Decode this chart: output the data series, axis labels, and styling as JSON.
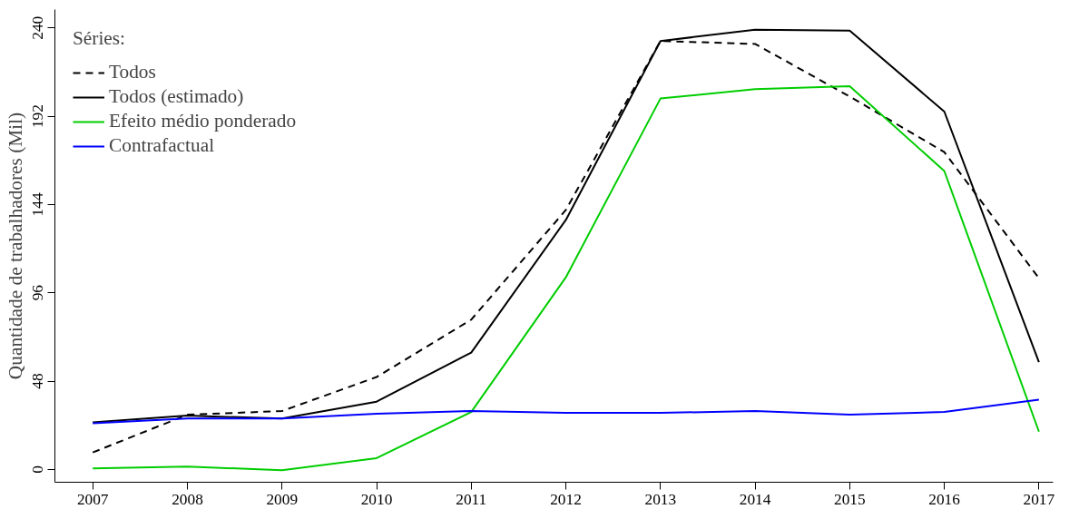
{
  "chart_data": {
    "type": "line",
    "ylabel": "Quantidade de trabalhadores (Mil)",
    "legend_title": "Séries:",
    "legend": "top left",
    "grid": false,
    "x": [
      2007,
      2008,
      2009,
      2010,
      2011,
      2012,
      2013,
      2014,
      2015,
      2016,
      2017
    ],
    "xlim": [
      2006.6,
      2017.15
    ],
    "xticks": [
      2007,
      2008,
      2009,
      2010,
      2011,
      2012,
      2013,
      2014,
      2015,
      2016,
      2017
    ],
    "ylim": [
      -7,
      250
    ],
    "yticks": [
      0,
      48,
      96,
      144,
      192,
      240
    ],
    "series": [
      {
        "name": "Todos",
        "color": "#000000",
        "line_style": "dashed",
        "values": [
          9.2,
          29.7,
          31.7,
          50.2,
          81.4,
          141,
          232.9,
          231.3,
          202.7,
          172.5,
          103.9
        ]
      },
      {
        "name": "Todos (estimado)",
        "color": "#000000",
        "line_style": "solid",
        "values": [
          25.6,
          29.2,
          27.6,
          36.8,
          63.5,
          135.6,
          232.9,
          239,
          238.5,
          194.5,
          58.3
        ]
      },
      {
        "name": "Efeito médio ponderado",
        "color": "#00cd00",
        "line_style": "solid",
        "values": [
          0.5,
          1.5,
          -0.5,
          6.1,
          31.2,
          104.4,
          201.6,
          206.7,
          208.3,
          162.2,
          20.5
        ]
      },
      {
        "name": "Contrafactual",
        "color": "#0000ff",
        "line_style": "solid",
        "values": [
          25.1,
          27.6,
          27.6,
          30.2,
          31.7,
          30.7,
          30.7,
          31.7,
          29.7,
          31.2,
          37.9
        ]
      }
    ]
  }
}
